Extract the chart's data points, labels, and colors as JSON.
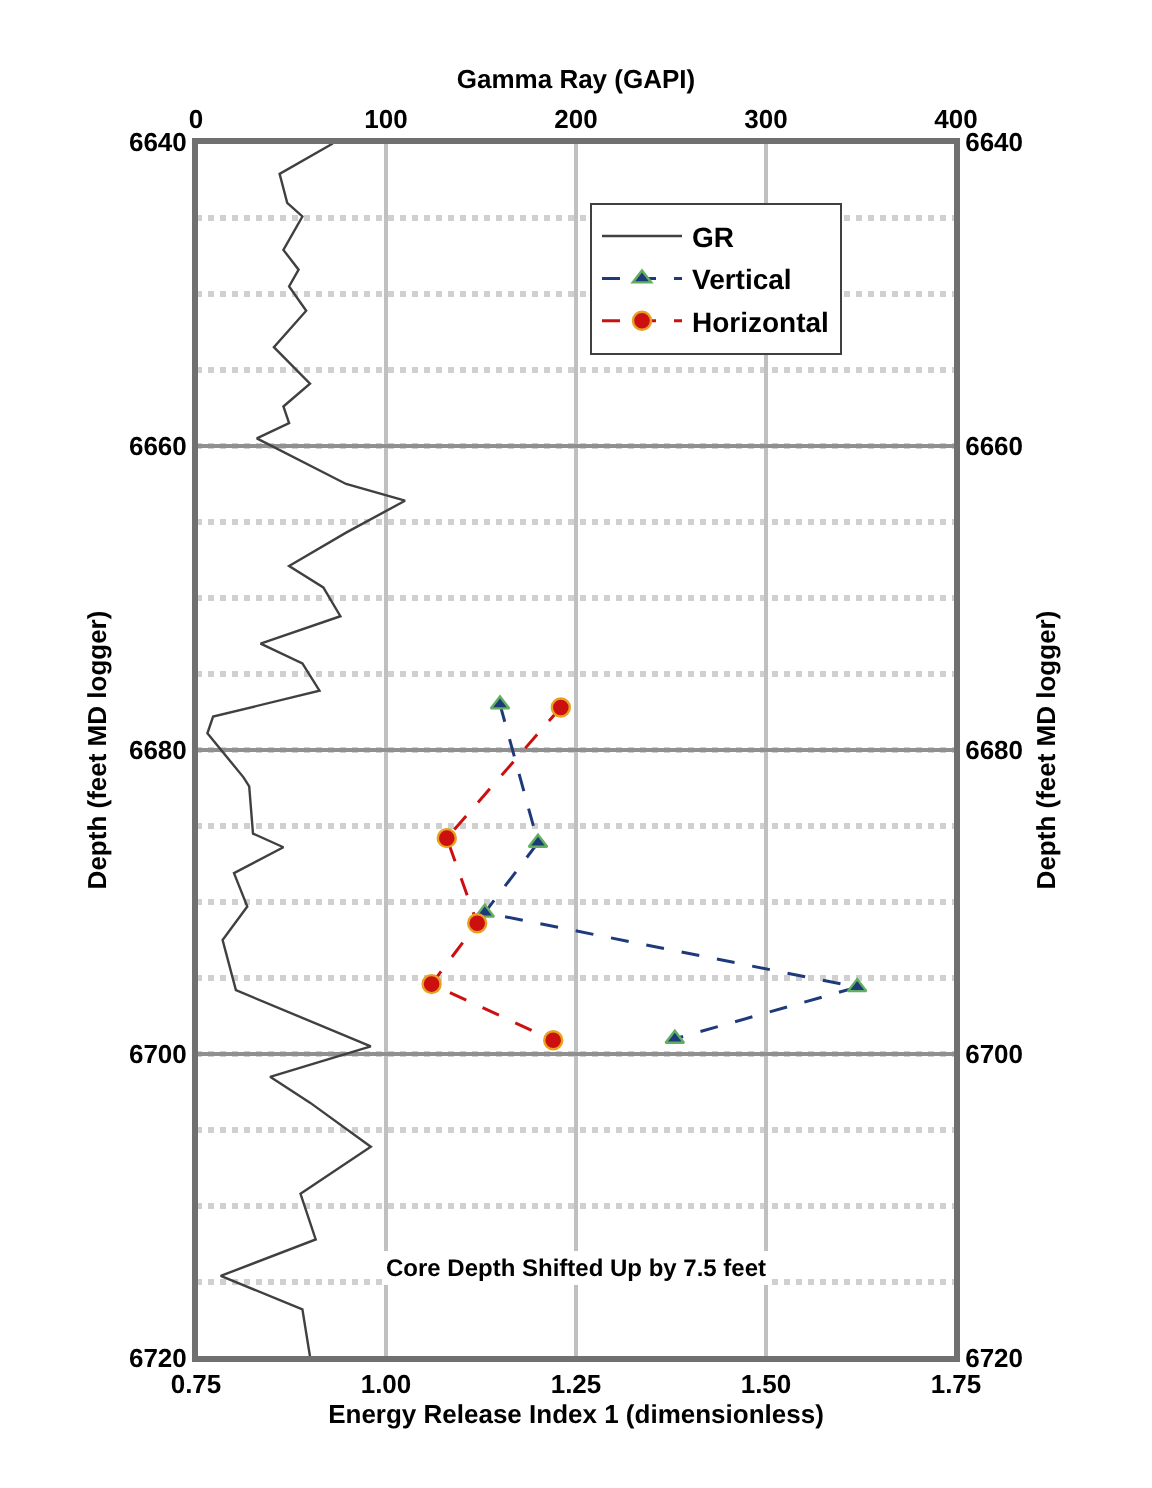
{
  "chart_data": {
    "type": "line",
    "xlabel": "Energy Release Index 1 (dimensionless)",
    "x2label": "Gamma Ray (GAPI)",
    "ylabel": "Depth (feet MD logger)",
    "y2label": "Depth (feet MD logger)",
    "xlim": [
      0.75,
      1.75
    ],
    "xticks": [
      {
        "value": 0.75,
        "label": "0.75"
      },
      {
        "value": 1.0,
        "label": "1.00"
      },
      {
        "value": 1.25,
        "label": "1.25"
      },
      {
        "value": 1.5,
        "label": "1.50"
      },
      {
        "value": 1.75,
        "label": "1.75"
      }
    ],
    "x2lim": [
      0,
      400
    ],
    "x2ticks": [
      0,
      100,
      200,
      300,
      400
    ],
    "ylim": [
      6720,
      6640
    ],
    "yticks": [
      6640,
      6660,
      6680,
      6700,
      6720
    ],
    "y2lim": [
      6720,
      6640
    ],
    "y2ticks": [
      6640,
      6660,
      6680,
      6700,
      6720
    ],
    "grid": true,
    "legend": "top right",
    "series": [
      {
        "name": "GR",
        "color": "#404040",
        "axis": "x2",
        "marker": "none",
        "line_style": "solid",
        "x": [
          72,
          44,
          48,
          56,
          46,
          54,
          49,
          58,
          41,
          60,
          46,
          49,
          32,
          79,
          110,
          79,
          49,
          67,
          76,
          34,
          56,
          65,
          9,
          6,
          25,
          28,
          30,
          46,
          20,
          27,
          14,
          21,
          92,
          39,
          60,
          92,
          55,
          63,
          13,
          56,
          60
        ],
        "values": [
          6640.1,
          6642.1,
          6644.0,
          6644.9,
          6647.1,
          6648.4,
          6649.5,
          6651.1,
          6653.5,
          6655.9,
          6657.4,
          6658.5,
          6659.5,
          6662.5,
          6663.6,
          6665.7,
          6667.9,
          6669.3,
          6671.2,
          6673.0,
          6674.3,
          6676.1,
          6677.8,
          6678.9,
          6681.8,
          6682.4,
          6685.5,
          6686.4,
          6688.1,
          6690.3,
          6692.5,
          6695.8,
          6699.5,
          6701.5,
          6703.2,
          6706.1,
          6709.2,
          6712.2,
          6714.6,
          6716.8,
          6719.9
        ]
      },
      {
        "name": "Vertical",
        "color": "#1f3a7a",
        "marker": "triangle",
        "line_style": "dashed",
        "x": [
          1.15,
          1.2,
          1.13,
          1.62,
          1.38
        ],
        "values": [
          6677.0,
          6686.1,
          6690.7,
          6695.6,
          6699.0
        ]
      },
      {
        "name": "Horizontal",
        "color": "#cc1010",
        "marker": "circle",
        "line_style": "dashed",
        "x": [
          1.23,
          1.08,
          1.12,
          1.06,
          1.22
        ],
        "values": [
          6677.2,
          6685.8,
          6691.4,
          6695.4,
          6699.1
        ]
      }
    ],
    "annotations": [
      "Core Depth Shifted Up by 7.5 feet"
    ]
  }
}
